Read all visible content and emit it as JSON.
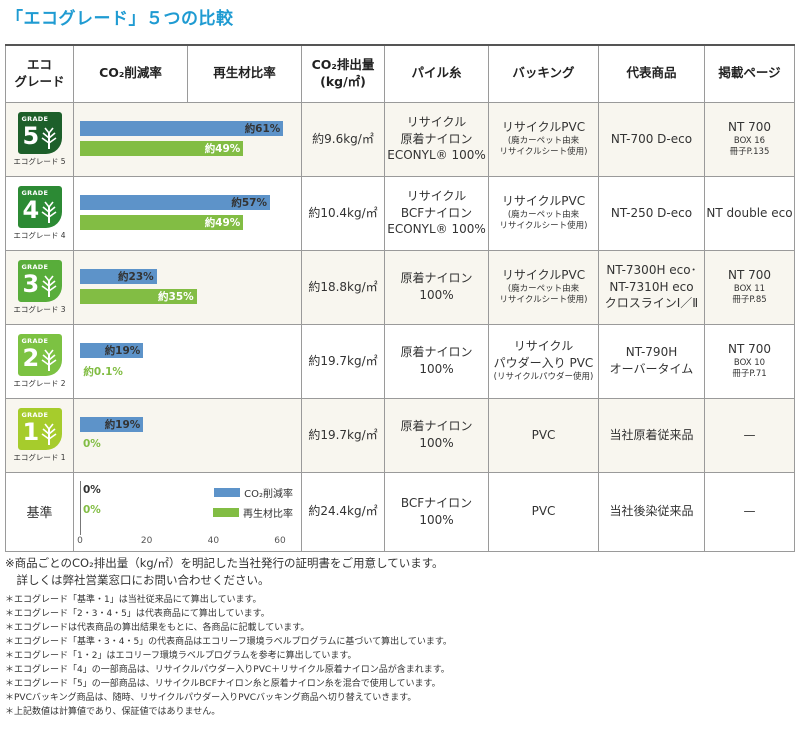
{
  "title": "「エコグレード」５つの比較",
  "header": {
    "grade_l1": "エコ",
    "grade_l2": "グレード",
    "co2_reduction": "CO₂削減率",
    "recycled_ratio": "再生材比率",
    "co2_emission_l1": "CO₂排出量",
    "co2_emission_l2": "(kg/㎡)",
    "pile_yarn": "パイル糸",
    "backing": "バッキング",
    "product": "代表商品",
    "page": "掲載ページ"
  },
  "colors": {
    "blue": "#5d93c9",
    "green": "#82bd44",
    "title": "#1f9bd2"
  },
  "chart_data": {
    "type": "bar",
    "categories": [
      "エコグレード5",
      "エコグレード4",
      "エコグレード3",
      "エコグレード2",
      "エコグレード1",
      "基準"
    ],
    "series": [
      {
        "name": "CO₂削減率",
        "values": [
          61,
          57,
          23,
          19,
          19,
          0
        ]
      },
      {
        "name": "再生材比率",
        "values": [
          49,
          49,
          35,
          0.1,
          0,
          0
        ]
      }
    ],
    "xlim": [
      0,
      60
    ],
    "ticks": [
      "0",
      "20",
      "40",
      "60"
    ]
  },
  "rows": [
    {
      "badge_text": "GRADE",
      "grade_num": "5",
      "grade_label": "エコグレード 5",
      "badge_color": "#1d5f2a",
      "co2_label": "約61%",
      "rec_label": "約49%",
      "emission": "約9.6kg/㎡",
      "pile": [
        "リサイクル",
        "原着ナイロン",
        "ECONYL® 100%"
      ],
      "backing": [
        "リサイクルPVC",
        "(廃カーペット由来",
        "リサイクルシート使用)"
      ],
      "product": [
        "NT-700 D-eco"
      ],
      "page": [
        "NT 700",
        "BOX 16",
        "冊子P.135"
      ]
    },
    {
      "badge_text": "GRADE",
      "grade_num": "4",
      "grade_label": "エコグレード 4",
      "badge_color": "#2c8a34",
      "co2_label": "約57%",
      "rec_label": "約49%",
      "emission": "約10.4kg/㎡",
      "pile": [
        "リサイクル",
        "BCFナイロン",
        "ECONYL® 100%"
      ],
      "backing": [
        "リサイクルPVC",
        "(廃カーペット由来",
        "リサイクルシート使用)"
      ],
      "product": [
        "NT-250 D-eco"
      ],
      "page": [
        "NT double eco"
      ]
    },
    {
      "badge_text": "GRADE",
      "grade_num": "3",
      "grade_label": "エコグレード 3",
      "badge_color": "#58ad3a",
      "co2_label": "約23%",
      "rec_label": "約35%",
      "emission": "約18.8kg/㎡",
      "pile": [
        "原着ナイロン",
        "100%"
      ],
      "backing": [
        "リサイクルPVC",
        "(廃カーペット由来",
        "リサイクルシート使用)"
      ],
      "product": [
        "NT-7300H eco･",
        "NT-7310H eco",
        "クロスラインⅠ／Ⅱ"
      ],
      "page": [
        "NT 700",
        "BOX 11",
        "冊子P.85"
      ]
    },
    {
      "badge_text": "GRADE",
      "grade_num": "2",
      "grade_label": "エコグレード 2",
      "badge_color": "#7cc242",
      "co2_label": "約19%",
      "rec_label": "約0.1%",
      "emission": "約19.7kg/㎡",
      "pile": [
        "原着ナイロン",
        "100%"
      ],
      "backing": [
        "リサイクル",
        "パウダー入り PVC",
        "(リサイクルパウダー使用)"
      ],
      "product": [
        "NT-790H",
        "オーバータイム"
      ],
      "page": [
        "NT 700",
        "BOX 10",
        "冊子P.71"
      ]
    },
    {
      "badge_text": "GRADE",
      "grade_num": "1",
      "grade_label": "エコグレード 1",
      "badge_color": "#a6cc2c",
      "co2_label": "約19%",
      "rec_label": "0%",
      "emission": "約19.7kg/㎡",
      "pile": [
        "原着ナイロン",
        "100%"
      ],
      "backing": [
        "PVC"
      ],
      "product": [
        "当社原着従来品"
      ],
      "page": [
        "—"
      ]
    },
    {
      "badge_text": "",
      "grade_num": "",
      "grade_label": "基準",
      "badge_color": "",
      "co2_label": "0%",
      "rec_label": "0%",
      "emission": "約24.4kg/㎡",
      "pile": [
        "BCFナイロン",
        "100%"
      ],
      "backing": [
        "PVC"
      ],
      "product": [
        "当社後染従来品"
      ],
      "page": [
        "—"
      ]
    }
  ],
  "legend": {
    "co2": "CO₂削減率",
    "recycled": "再生材比率"
  },
  "notes": {
    "main1": "※商品ごとのCO₂排出量（kg/㎡）を明記した当社発行の証明書をご用意しています。",
    "main2": "　詳しくは弊社営業窓口にお問い合わせください。",
    "fine": [
      "＊エコグレード「基準・1」は当社従来品にて算出しています。",
      "＊エコグレード「2・3・4・5」は代表商品にて算出しています。",
      "＊エコグレードは代表商品の算出結果をもとに、各商品に記載しています。",
      "＊エコグレード「基準・3・4・5」の代表商品はエコリーフ環境ラベルプログラムに基づいて算出しています。",
      "＊エコグレード「1・2」はエコリーフ環境ラベルプログラムを参考に算出しています。",
      "＊エコグレード「4」の一部商品は、リサイクルパウダー入りPVC＋リサイクル原着ナイロン品が含まれます。",
      "＊エコグレード「5」の一部商品は、リサイクルBCFナイロン糸と原着ナイロン糸を混合で使用しています。",
      "＊PVCバッキング商品は、随時、リサイクルパウダー入りPVCバッキング商品へ切り替えていきます。",
      "＊上記数値は計算値であり、保証値ではありません。"
    ]
  }
}
